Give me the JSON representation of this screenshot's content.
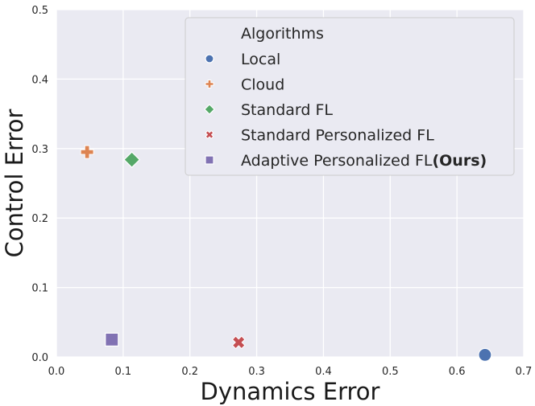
{
  "chart_data": {
    "type": "scatter",
    "title": "",
    "xlabel": "Dynamics Error",
    "ylabel": "Control Error",
    "xlim": [
      0.0,
      0.7
    ],
    "ylim": [
      0.0,
      0.5
    ],
    "xticks": [
      "0.0",
      "0.1",
      "0.2",
      "0.3",
      "0.4",
      "0.5",
      "0.6",
      "0.7"
    ],
    "yticks": [
      "0.0",
      "0.1",
      "0.2",
      "0.3",
      "0.4",
      "0.5"
    ],
    "grid": true,
    "background": "#eaeaf2",
    "legend": {
      "title": "Algorithms",
      "placement": "top-right"
    },
    "series": [
      {
        "name": "Local",
        "marker": "circle",
        "color": "#4c72b0",
        "x": 0.642,
        "y": 0.003
      },
      {
        "name": "Cloud",
        "marker": "plus",
        "color": "#dd8452",
        "x": 0.046,
        "y": 0.295
      },
      {
        "name": "Standard FL",
        "marker": "diamond",
        "color": "#55a868",
        "x": 0.113,
        "y": 0.284
      },
      {
        "name": "Standard Personalized FL",
        "marker": "x",
        "color": "#c44e52",
        "x": 0.273,
        "y": 0.021
      },
      {
        "name": "Adaptive Personalized FL",
        "name_suffix": "(Ours)",
        "marker": "square",
        "color": "#8172b3",
        "x": 0.083,
        "y": 0.025
      }
    ]
  }
}
